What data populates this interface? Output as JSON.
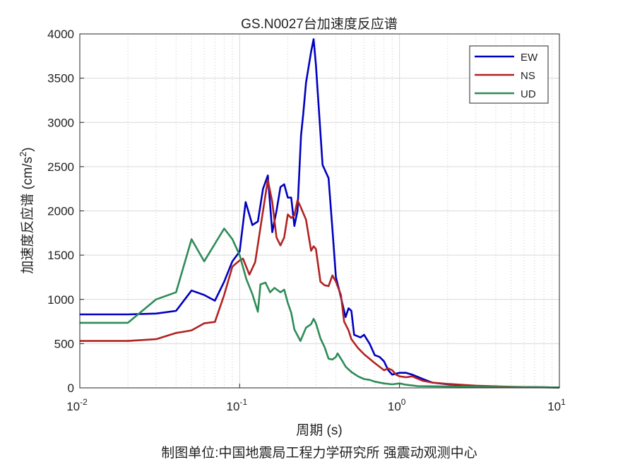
{
  "chart_data": {
    "type": "line",
    "title": "GS.N0027台加速度反应谱",
    "xlabel": "周期 (s)",
    "ylabel": "加速度反应谱 (cm/s",
    "ylabel_sup": "2",
    "ylabel_end": ")",
    "footer": "制图单位:中国地震局工程力学研究所 强震动观测中心",
    "xscale": "log",
    "xlim": [
      0.01,
      10
    ],
    "ylim": [
      0,
      4000
    ],
    "grid": true,
    "legend_position": "top-right",
    "xtick_labels": [
      {
        "base": "10",
        "exp": "-2"
      },
      {
        "base": "10",
        "exp": "-1"
      },
      {
        "base": "10",
        "exp": "0"
      },
      {
        "base": "10",
        "exp": "1"
      }
    ],
    "yticks": [
      "0",
      "500",
      "1000",
      "1500",
      "2000",
      "2500",
      "3000",
      "3500",
      "4000"
    ],
    "series": [
      {
        "name": "EW",
        "color": "#0000c0",
        "points": [
          [
            0.01,
            830
          ],
          [
            0.02,
            830
          ],
          [
            0.03,
            840
          ],
          [
            0.04,
            870
          ],
          [
            0.05,
            1100
          ],
          [
            0.06,
            1050
          ],
          [
            0.07,
            985
          ],
          [
            0.08,
            1200
          ],
          [
            0.09,
            1430
          ],
          [
            0.1,
            1540
          ],
          [
            0.109,
            2100
          ],
          [
            0.12,
            1840
          ],
          [
            0.13,
            1880
          ],
          [
            0.14,
            2250
          ],
          [
            0.15,
            2400
          ],
          [
            0.16,
            1760
          ],
          [
            0.17,
            2000
          ],
          [
            0.18,
            2270
          ],
          [
            0.19,
            2300
          ],
          [
            0.2,
            2150
          ],
          [
            0.21,
            2150
          ],
          [
            0.22,
            1830
          ],
          [
            0.23,
            2000
          ],
          [
            0.242,
            2850
          ],
          [
            0.25,
            3100
          ],
          [
            0.26,
            3450
          ],
          [
            0.28,
            3800
          ],
          [
            0.29,
            3940
          ],
          [
            0.3,
            3650
          ],
          [
            0.33,
            2520
          ],
          [
            0.36,
            2370
          ],
          [
            0.38,
            1800
          ],
          [
            0.4,
            1250
          ],
          [
            0.42,
            1100
          ],
          [
            0.46,
            800
          ],
          [
            0.48,
            900
          ],
          [
            0.5,
            870
          ],
          [
            0.52,
            600
          ],
          [
            0.57,
            570
          ],
          [
            0.6,
            600
          ],
          [
            0.65,
            500
          ],
          [
            0.7,
            370
          ],
          [
            0.75,
            350
          ],
          [
            0.8,
            300
          ],
          [
            0.85,
            200
          ],
          [
            0.9,
            150
          ],
          [
            1.0,
            170
          ],
          [
            1.1,
            170
          ],
          [
            1.2,
            150
          ],
          [
            1.4,
            100
          ],
          [
            1.6,
            60
          ],
          [
            2,
            40
          ],
          [
            3,
            20
          ],
          [
            5,
            10
          ],
          [
            10,
            5
          ]
        ]
      },
      {
        "name": "NS",
        "color": "#b22222",
        "points": [
          [
            0.01,
            530
          ],
          [
            0.02,
            530
          ],
          [
            0.03,
            550
          ],
          [
            0.04,
            620
          ],
          [
            0.05,
            650
          ],
          [
            0.06,
            730
          ],
          [
            0.07,
            745
          ],
          [
            0.08,
            1050
          ],
          [
            0.09,
            1370
          ],
          [
            0.1,
            1440
          ],
          [
            0.105,
            1460
          ],
          [
            0.115,
            1280
          ],
          [
            0.125,
            1420
          ],
          [
            0.14,
            2000
          ],
          [
            0.15,
            2350
          ],
          [
            0.16,
            2100
          ],
          [
            0.17,
            1700
          ],
          [
            0.18,
            1610
          ],
          [
            0.19,
            1700
          ],
          [
            0.2,
            1960
          ],
          [
            0.21,
            1920
          ],
          [
            0.22,
            1950
          ],
          [
            0.23,
            2120
          ],
          [
            0.24,
            2050
          ],
          [
            0.26,
            1900
          ],
          [
            0.28,
            1550
          ],
          [
            0.29,
            1600
          ],
          [
            0.3,
            1570
          ],
          [
            0.32,
            1200
          ],
          [
            0.34,
            1160
          ],
          [
            0.36,
            1150
          ],
          [
            0.38,
            1270
          ],
          [
            0.4,
            1200
          ],
          [
            0.43,
            1050
          ],
          [
            0.45,
            750
          ],
          [
            0.48,
            650
          ],
          [
            0.5,
            550
          ],
          [
            0.55,
            450
          ],
          [
            0.6,
            380
          ],
          [
            0.7,
            280
          ],
          [
            0.8,
            200
          ],
          [
            0.85,
            220
          ],
          [
            0.9,
            200
          ],
          [
            0.95,
            150
          ],
          [
            1.0,
            130
          ],
          [
            1.1,
            120
          ],
          [
            1.2,
            130
          ],
          [
            1.4,
            80
          ],
          [
            1.6,
            60
          ],
          [
            2,
            45
          ],
          [
            3,
            25
          ],
          [
            5,
            12
          ],
          [
            10,
            5
          ]
        ]
      },
      {
        "name": "UD",
        "color": "#2e8b57",
        "points": [
          [
            0.01,
            735
          ],
          [
            0.02,
            735
          ],
          [
            0.03,
            1000
          ],
          [
            0.04,
            1080
          ],
          [
            0.05,
            1680
          ],
          [
            0.06,
            1430
          ],
          [
            0.08,
            1800
          ],
          [
            0.09,
            1680
          ],
          [
            0.1,
            1500
          ],
          [
            0.11,
            1230
          ],
          [
            0.12,
            1060
          ],
          [
            0.13,
            860
          ],
          [
            0.135,
            1170
          ],
          [
            0.145,
            1190
          ],
          [
            0.155,
            1080
          ],
          [
            0.165,
            1130
          ],
          [
            0.18,
            1080
          ],
          [
            0.19,
            1110
          ],
          [
            0.2,
            960
          ],
          [
            0.21,
            850
          ],
          [
            0.22,
            660
          ],
          [
            0.24,
            530
          ],
          [
            0.26,
            680
          ],
          [
            0.28,
            720
          ],
          [
            0.29,
            780
          ],
          [
            0.3,
            730
          ],
          [
            0.32,
            560
          ],
          [
            0.34,
            460
          ],
          [
            0.36,
            330
          ],
          [
            0.38,
            320
          ],
          [
            0.4,
            350
          ],
          [
            0.41,
            390
          ],
          [
            0.44,
            300
          ],
          [
            0.46,
            240
          ],
          [
            0.5,
            180
          ],
          [
            0.55,
            130
          ],
          [
            0.6,
            100
          ],
          [
            0.65,
            90
          ],
          [
            0.7,
            70
          ],
          [
            0.8,
            50
          ],
          [
            0.9,
            40
          ],
          [
            1.0,
            50
          ],
          [
            1.1,
            35
          ],
          [
            1.3,
            20
          ],
          [
            2,
            15
          ],
          [
            5,
            8
          ],
          [
            10,
            5
          ]
        ]
      }
    ]
  }
}
